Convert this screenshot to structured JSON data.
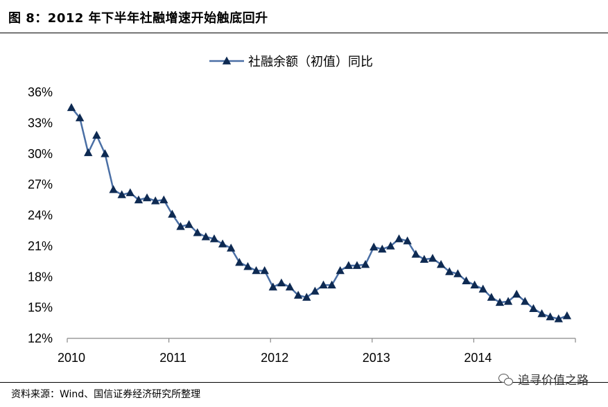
{
  "figure": {
    "title": "图 8：2012 年下半年社融增速开始触底回升",
    "source": "资料来源：Wind、国信证券经济研究所整理",
    "watermark": "追寻价值之路",
    "watermark_icon": "wechat-icon"
  },
  "chart_data": {
    "type": "line",
    "title": "",
    "xlabel": "",
    "ylabel": "",
    "x_ticks": [
      "2010",
      "2011",
      "2012",
      "2013",
      "2014"
    ],
    "y_ticks": [
      "12%",
      "15%",
      "18%",
      "21%",
      "24%",
      "27%",
      "30%",
      "33%",
      "36%"
    ],
    "ylim": [
      12,
      36
    ],
    "grid": false,
    "legend_position": "top-center",
    "line_color": "#4a6fa5",
    "marker_color": "#0e2a52",
    "marker": "triangle",
    "series": [
      {
        "name": "社融余额（初值）同比",
        "x": [
          "2010-01",
          "2010-02",
          "2010-03",
          "2010-04",
          "2010-05",
          "2010-06",
          "2010-07",
          "2010-08",
          "2010-09",
          "2010-10",
          "2010-11",
          "2010-12",
          "2011-01",
          "2011-02",
          "2011-03",
          "2011-04",
          "2011-05",
          "2011-06",
          "2011-07",
          "2011-08",
          "2011-09",
          "2011-10",
          "2011-11",
          "2011-12",
          "2012-01",
          "2012-02",
          "2012-03",
          "2012-04",
          "2012-05",
          "2012-06",
          "2012-07",
          "2012-08",
          "2012-09",
          "2012-10",
          "2012-11",
          "2012-12",
          "2013-01",
          "2013-02",
          "2013-03",
          "2013-04",
          "2013-05",
          "2013-06",
          "2013-07",
          "2013-08",
          "2013-09",
          "2013-10",
          "2013-11",
          "2013-12",
          "2014-01",
          "2014-02",
          "2014-03",
          "2014-04",
          "2014-05",
          "2014-06",
          "2014-07",
          "2014-08",
          "2014-09",
          "2014-10",
          "2014-11",
          "2014-12"
        ],
        "values": [
          34.5,
          33.5,
          30.1,
          31.8,
          30.0,
          26.5,
          26.0,
          26.2,
          25.5,
          25.7,
          25.4,
          25.5,
          24.1,
          22.9,
          23.1,
          22.3,
          21.9,
          21.7,
          21.2,
          20.8,
          19.4,
          19.0,
          18.6,
          18.6,
          17.0,
          17.4,
          17.0,
          16.2,
          16.0,
          16.6,
          17.2,
          17.2,
          18.6,
          19.1,
          19.1,
          19.2,
          20.9,
          20.7,
          21.0,
          21.7,
          21.5,
          20.2,
          19.7,
          19.8,
          19.2,
          18.5,
          18.3,
          17.6,
          17.2,
          16.8,
          16.0,
          15.5,
          15.6,
          16.3,
          15.6,
          14.9,
          14.4,
          14.1,
          13.9,
          14.2
        ]
      }
    ]
  }
}
